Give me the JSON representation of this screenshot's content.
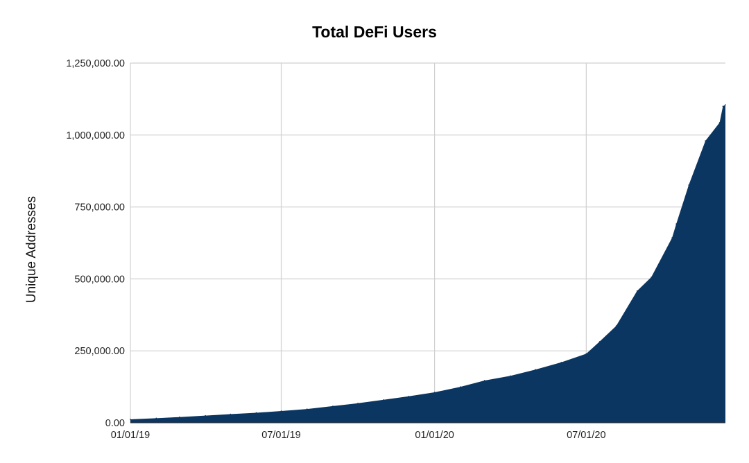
{
  "chart_data": {
    "type": "area",
    "title": "Total DeFi Users",
    "xlabel": "",
    "ylabel": "Unique Addresses",
    "ylim": [
      0,
      1250000
    ],
    "xlim": [
      "2019-01-01",
      "2020-12-15"
    ],
    "grid": true,
    "legend": "none",
    "y_ticks": [
      "0.00",
      "250,000.00",
      "500,000.00",
      "750,000.00",
      "1,000,000.00",
      "1,250,000.00"
    ],
    "x_ticks": [
      {
        "date": "2019-01-01",
        "label": "01/01/19"
      },
      {
        "date": "2019-07-01",
        "label": "07/01/19"
      },
      {
        "date": "2020-01-01",
        "label": "01/01/20"
      },
      {
        "date": "2020-07-01",
        "label": "07/01/20"
      }
    ],
    "color": "#0b3661",
    "series": [
      {
        "x": [
          "2019-01-01",
          "2019-02-01",
          "2019-03-01",
          "2019-04-01",
          "2019-05-01",
          "2019-06-01",
          "2019-07-01",
          "2019-08-01",
          "2019-09-01",
          "2019-10-01",
          "2019-11-01",
          "2019-12-01",
          "2020-01-01",
          "2020-02-01",
          "2020-03-01",
          "2020-04-01",
          "2020-05-01",
          "2020-06-01",
          "2020-07-01",
          "2020-07-17",
          "2020-08-06",
          "2020-08-31",
          "2020-09-17",
          "2020-10-12",
          "2020-10-17",
          "2020-11-01",
          "2020-11-21",
          "2020-12-08",
          "2020-12-12",
          "2020-12-15"
        ],
        "y": [
          12000,
          16000,
          20000,
          25000,
          30000,
          35000,
          41000,
          48000,
          58000,
          68000,
          80000,
          92000,
          106000,
          125000,
          147000,
          163000,
          185000,
          210000,
          240000,
          282000,
          337000,
          458000,
          506000,
          643000,
          691000,
          826000,
          980000,
          1043000,
          1100000,
          1105000
        ]
      }
    ]
  }
}
